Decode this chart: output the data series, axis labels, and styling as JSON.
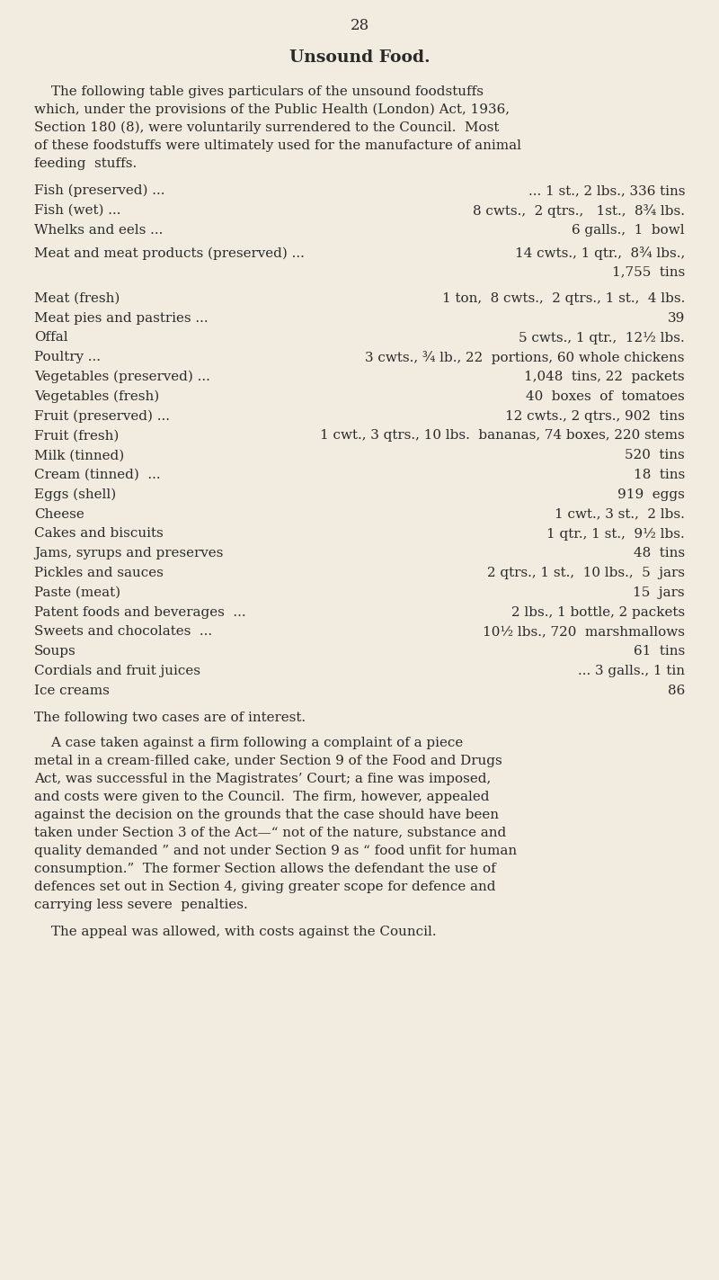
{
  "page_number": "28",
  "title": "Unsound Food.",
  "bg_color": "#f2ece0",
  "text_color": "#2a2a2a",
  "intro_lines": [
    "    The following table gives particulars of the unsound foodstuffs",
    "which, under the provisions of the Public Health (London) Act, 1936,",
    "Section 180 (8), were voluntarily surrendered to the Council.  Most",
    "of these foodstuffs were ultimately used for the manufacture of animal",
    "feeding  stuffs."
  ],
  "table_rows": [
    {
      "left": "Fish (preserved) ...",
      "right": "... 1 st., 2 lbs., 336 tins",
      "extra_right": null
    },
    {
      "left": "Fish (wet) ...",
      "right": "8 cwts.,  2 qtrs.,   1st.,  8¾ lbs.",
      "extra_right": null
    },
    {
      "left": "Whelks and eels ...",
      "right": "6 galls.,  1  bowl",
      "extra_right": null
    },
    {
      "left": "Meat and meat products (preserved) ...",
      "right": "14 cwts., 1 qtr.,  8¾ lbs.,",
      "extra_right": "1,755  tins"
    },
    {
      "left": "Meat (fresh)",
      "right": "1 ton,  8 cwts.,  2 qtrs., 1 st.,  4 lbs.",
      "extra_right": null
    },
    {
      "left": "Meat pies and pastries ...",
      "right": "39",
      "extra_right": null
    },
    {
      "left": "Offal",
      "right": "5 cwts., 1 qtr.,  12½ lbs.",
      "extra_right": null
    },
    {
      "left": "Poultry ...",
      "right": "3 cwts., ¾ lb., 22  portions, 60 whole chickens",
      "extra_right": null
    },
    {
      "left": "Vegetables (preserved) ...",
      "right": "1,048  tins, 22  packets",
      "extra_right": null
    },
    {
      "left": "Vegetables (fresh)",
      "right": "40  boxes  of  tomatoes",
      "extra_right": null
    },
    {
      "left": "Fruit (preserved) ...",
      "right": "12 cwts., 2 qtrs., 902  tins",
      "extra_right": null
    },
    {
      "left": "Fruit (fresh)",
      "right": "1 cwt., 3 qtrs., 10 lbs.  bananas, 74 boxes, 220 stems",
      "extra_right": null
    },
    {
      "left": "Milk (tinned)",
      "right": "520  tins",
      "extra_right": null
    },
    {
      "left": "Cream (tinned)  ...",
      "right": "18  tins",
      "extra_right": null
    },
    {
      "left": "Eggs (shell)",
      "right": "919  eggs",
      "extra_right": null
    },
    {
      "left": "Cheese",
      "right": "1 cwt., 3 st.,  2 lbs.",
      "extra_right": null
    },
    {
      "left": "Cakes and biscuits",
      "right": "1 qtr., 1 st.,  9½ lbs.",
      "extra_right": null
    },
    {
      "left": "Jams, syrups and preserves",
      "right": "48  tins",
      "extra_right": null
    },
    {
      "left": "Pickles and sauces",
      "right": "2 qtrs., 1 st.,  10 lbs.,  5  jars",
      "extra_right": null
    },
    {
      "left": "Paste (meat)",
      "right": "15  jars",
      "extra_right": null
    },
    {
      "left": "Patent foods and beverages  ...",
      "right": "2 lbs., 1 bottle, 2 packets",
      "extra_right": null
    },
    {
      "left": "Sweets and chocolates  ...",
      "right": "10½ lbs., 720  marshmallows",
      "extra_right": null
    },
    {
      "left": "Soups",
      "right": "61  tins",
      "extra_right": null
    },
    {
      "left": "Cordials and fruit juices",
      "right": "... 3 galls., 1 tin",
      "extra_right": null
    },
    {
      "left": "Ice creams",
      "right": "86",
      "extra_right": null
    }
  ],
  "separator_line": "The following two cases are of interest.",
  "closing_para1_lines": [
    "    A case taken against a firm following a complaint of a piece",
    "metal in a cream-filled cake, under Section 9 of the Food and Drugs",
    "Act, was successful in the Magistrates’ Court; a fine was imposed,",
    "and costs were given to the Council.  The firm, however, appealed",
    "against the decision on the grounds that the case should have been",
    "taken under Section 3 of the Act—“ not of the nature, substance and",
    "quality demanded ” and not under Section 9 as “ food unfit for human",
    "consumption.”  The former Section allows the defendant the use of",
    "defences set out in Section 4, giving greater scope for defence and",
    "carrying less severe  penalties."
  ],
  "closing_para2": "    The appeal was allowed, with costs against the Council."
}
